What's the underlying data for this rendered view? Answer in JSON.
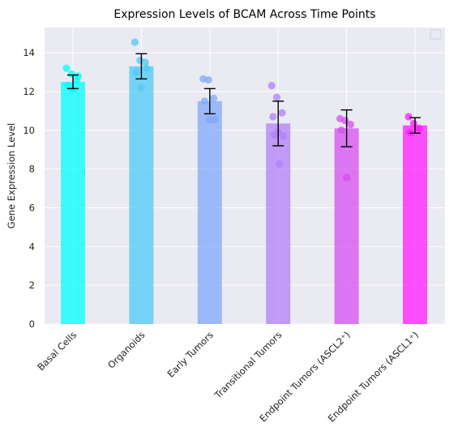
{
  "chart_data": {
    "type": "bar",
    "title": "Expression Levels of BCAM Across Time Points",
    "xlabel": "",
    "ylabel": "Gene Expression Level",
    "ylim": [
      0,
      15.3
    ],
    "yticks": [
      0,
      2,
      4,
      6,
      8,
      10,
      12,
      14
    ],
    "grid": true,
    "legend": "top-right, empty",
    "categories": [
      "Basal Cells",
      "Organoids",
      "Early Tumors",
      "Transitional Tumors",
      "Endpoint Tumors (ASCL2⁺)",
      "Endpoint Tumors (ASCL1⁺)"
    ],
    "values": [
      12.5,
      13.3,
      11.5,
      10.35,
      10.1,
      10.25
    ],
    "errors": [
      0.35,
      0.65,
      0.65,
      1.15,
      0.95,
      0.4
    ],
    "colors": [
      "#00ffff",
      "#4dc9f5",
      "#80a8fb",
      "#b27ff7",
      "#d64df0",
      "#ff1aff"
    ],
    "points": [
      [
        13.2,
        12.9,
        12.6,
        12.3,
        12.1,
        12.8
      ],
      [
        14.55,
        13.6,
        13.5,
        13.0,
        12.2,
        13.2
      ],
      [
        12.65,
        12.6,
        11.65,
        11.5,
        10.55,
        10.55
      ],
      [
        12.3,
        11.7,
        10.9,
        10.7,
        9.9,
        9.7,
        9.75,
        8.25
      ],
      [
        10.6,
        10.5,
        10.3,
        10.0,
        7.55
      ],
      [
        10.7,
        10.35,
        10.1,
        9.9
      ]
    ]
  }
}
